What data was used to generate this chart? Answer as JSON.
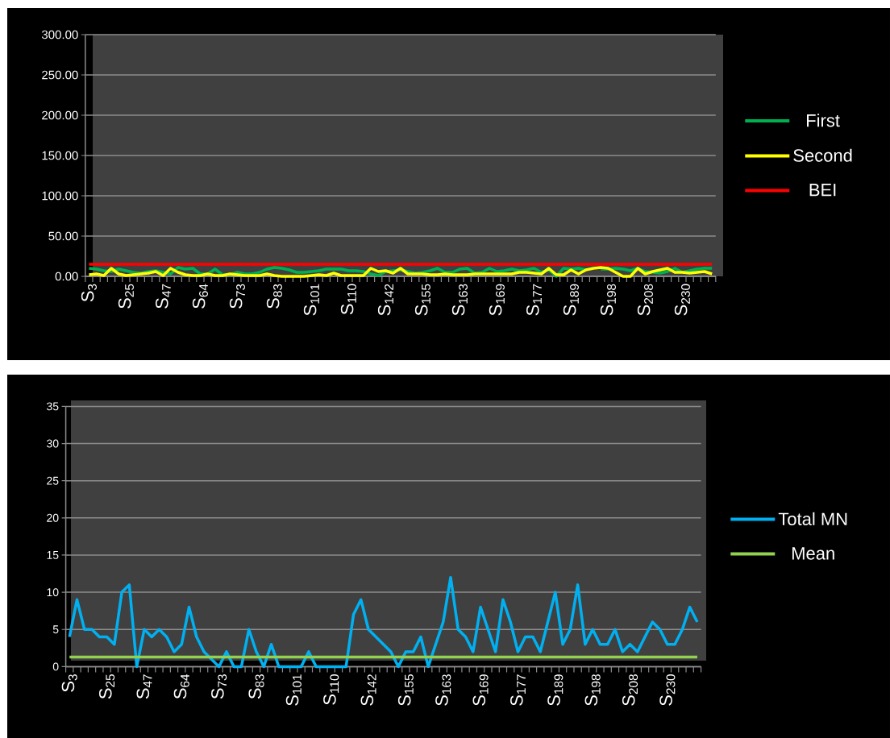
{
  "chart_data": [
    {
      "type": "line",
      "legend": "right",
      "grid": "y",
      "categories": [
        "S$_{3}$",
        null,
        null,
        null,
        null,
        "S$_{25}$",
        null,
        null,
        null,
        null,
        "S$_{47}$",
        null,
        null,
        null,
        null,
        "S$_{64}$",
        null,
        null,
        null,
        null,
        "S$_{73}$",
        null,
        null,
        null,
        null,
        "S$_{83}$",
        null,
        null,
        null,
        null,
        "S$_{101}$",
        null,
        null,
        null,
        null,
        "S$_{110}$",
        null,
        null,
        null,
        null,
        "S$_{142}$",
        null,
        null,
        null,
        null,
        "S$_{155}$",
        null,
        null,
        null,
        null,
        "S$_{163}$",
        null,
        null,
        null,
        null,
        "S$_{169}$",
        null,
        null,
        null,
        null,
        "S$_{177}$",
        null,
        null,
        null,
        null,
        "S$_{189}$",
        null,
        null,
        null,
        null,
        "S$_{198}$",
        null,
        null,
        null,
        null,
        "S$_{208}$",
        null,
        null,
        null,
        null,
        "S$_{230}$",
        null,
        null,
        null,
        null
      ],
      "ylim": [
        0,
        300
      ],
      "yticks": [
        {
          "value": 0,
          "label": "0.00"
        },
        {
          "value": 50,
          "label": "50.00"
        },
        {
          "value": 100,
          "label": "100.00"
        },
        {
          "value": 150,
          "label": "150.00"
        },
        {
          "value": 200,
          "label": "200.00"
        },
        {
          "value": 250,
          "label": "250.00"
        },
        {
          "value": 300,
          "label": "300.00"
        }
      ],
      "series": [
        {
          "name": "First",
          "color": "#00b050",
          "values": [
            10,
            9,
            7,
            6,
            9,
            7,
            5,
            4,
            6,
            7,
            5,
            3,
            11,
            9,
            10,
            3,
            3,
            9,
            2,
            2,
            5,
            3,
            3,
            5,
            9,
            11,
            10,
            8,
            5,
            5,
            6,
            7,
            9,
            9,
            9,
            7,
            7,
            6,
            3,
            1,
            6,
            7,
            8,
            6,
            4,
            5,
            7,
            10,
            5,
            5,
            9,
            10,
            4,
            5,
            10,
            6,
            7,
            9,
            7,
            8,
            10,
            5,
            8,
            0,
            10,
            9,
            10,
            8,
            null,
            9,
            9,
            10,
            9,
            7,
            10,
            6,
            5,
            4,
            6,
            10,
            5,
            7,
            9,
            10,
            10
          ]
        },
        {
          "name": "Second",
          "color": "#ffff00",
          "values": [
            2,
            3,
            1,
            10,
            3,
            1,
            2,
            3,
            4,
            6,
            1,
            10,
            5,
            2,
            1,
            1,
            3,
            1,
            1,
            3,
            2,
            1,
            1,
            1,
            3,
            1,
            0,
            0,
            0,
            0,
            1,
            2,
            1,
            4,
            1,
            1,
            1,
            1,
            10,
            6,
            7,
            4,
            10,
            3,
            3,
            3,
            2,
            2,
            3,
            2,
            2,
            2,
            3,
            3,
            3,
            3,
            3,
            3,
            5,
            5,
            4,
            3,
            10,
            2,
            2,
            8,
            3,
            8,
            10,
            11,
            10,
            5,
            0,
            0,
            10,
            3,
            6,
            8,
            10,
            5,
            5,
            4,
            5,
            6,
            3
          ]
        },
        {
          "name": "BEI",
          "color": "#ff0000",
          "values": [
            15,
            15,
            15,
            15,
            15,
            15,
            15,
            15,
            15,
            15,
            15,
            15,
            15,
            15,
            15,
            15,
            15,
            15,
            15,
            15,
            15,
            15,
            15,
            15,
            15,
            15,
            15,
            15,
            15,
            15,
            15,
            15,
            15,
            15,
            15,
            15,
            15,
            15,
            15,
            15,
            15,
            15,
            15,
            15,
            15,
            15,
            15,
            15,
            15,
            15,
            15,
            15,
            15,
            15,
            15,
            15,
            15,
            15,
            15,
            15,
            15,
            15,
            15,
            15,
            15,
            15,
            15,
            15,
            15,
            15,
            15,
            15,
            15,
            15,
            15,
            15,
            15,
            15,
            15,
            15,
            15,
            15,
            15,
            15,
            15
          ]
        }
      ]
    },
    {
      "type": "line",
      "legend": "right",
      "grid": "y",
      "categories": [
        "S$_{3}$",
        null,
        null,
        null,
        null,
        "S$_{25}$",
        null,
        null,
        null,
        null,
        "S$_{47}$",
        null,
        null,
        null,
        null,
        "S$_{64}$",
        null,
        null,
        null,
        null,
        "S$_{73}$",
        null,
        null,
        null,
        null,
        "S$_{83}$",
        null,
        null,
        null,
        null,
        "S$_{101}$",
        null,
        null,
        null,
        null,
        "S$_{110}$",
        null,
        null,
        null,
        null,
        "S$_{142}$",
        null,
        null,
        null,
        null,
        "S$_{155}$",
        null,
        null,
        null,
        null,
        "S$_{163}$",
        null,
        null,
        null,
        null,
        "S$_{169}$",
        null,
        null,
        null,
        null,
        "S$_{177}$",
        null,
        null,
        null,
        null,
        "S$_{189}$",
        null,
        null,
        null,
        null,
        "S$_{198}$",
        null,
        null,
        null,
        null,
        "S$_{208}$",
        null,
        null,
        null,
        null,
        "S$_{230}$",
        null,
        null,
        null,
        null
      ],
      "ylim": [
        0,
        35
      ],
      "yticks": [
        0,
        5,
        10,
        15,
        20,
        25,
        30,
        35
      ],
      "series": [
        {
          "name": "Total MN",
          "color": "#00b0f0",
          "values": [
            4,
            9,
            5,
            5,
            4,
            4,
            3,
            10,
            11,
            0,
            5,
            4,
            5,
            4,
            2,
            3,
            8,
            4,
            2,
            1,
            0,
            2,
            0,
            0,
            5,
            2,
            0,
            3,
            0,
            0,
            0,
            0,
            2,
            0,
            0,
            0,
            0,
            0,
            7,
            9,
            5,
            4,
            3,
            2,
            0,
            2,
            2,
            4,
            0,
            3,
            6,
            12,
            5,
            4,
            2,
            8,
            5,
            2,
            9,
            6,
            2,
            4,
            4,
            2,
            6,
            10,
            3,
            5,
            11,
            3,
            5,
            3,
            3,
            5,
            2,
            3,
            2,
            4,
            6,
            5,
            3,
            3,
            5,
            8,
            6
          ]
        },
        {
          "name": "Mean",
          "color": "#92d050",
          "values": [
            1.3,
            1.3,
            1.3,
            1.3,
            1.3,
            1.3,
            1.3,
            1.3,
            1.3,
            1.3,
            1.3,
            1.3,
            1.3,
            1.3,
            1.3,
            1.3,
            1.3,
            1.3,
            1.3,
            1.3,
            1.3,
            1.3,
            1.3,
            1.3,
            1.3,
            1.3,
            1.3,
            1.3,
            1.3,
            1.3,
            1.3,
            1.3,
            1.3,
            1.3,
            1.3,
            1.3,
            1.3,
            1.3,
            1.3,
            1.3,
            1.3,
            1.3,
            1.3,
            1.3,
            1.3,
            1.3,
            1.3,
            1.3,
            1.3,
            1.3,
            1.3,
            1.3,
            1.3,
            1.3,
            1.3,
            1.3,
            1.3,
            1.3,
            1.3,
            1.3,
            1.3,
            1.3,
            1.3,
            1.3,
            1.3,
            1.3,
            1.3,
            1.3,
            1.3,
            1.3,
            1.3,
            1.3,
            1.3,
            1.3,
            1.3,
            1.3,
            1.3,
            1.3,
            1.3,
            1.3,
            1.3,
            1.3,
            1.3,
            1.3,
            1.3
          ]
        }
      ]
    }
  ]
}
